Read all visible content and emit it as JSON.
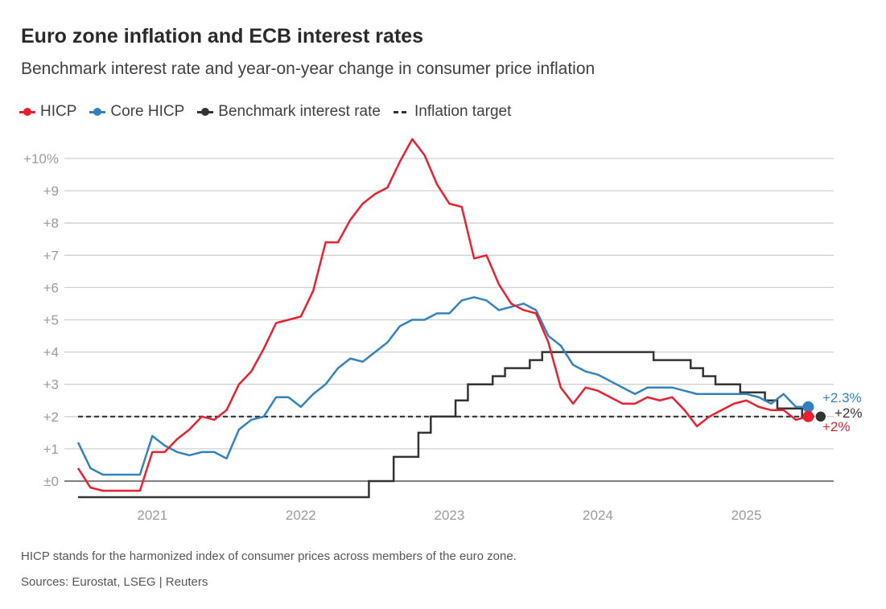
{
  "title": "Euro zone inflation and ECB interest rates",
  "subtitle": "Benchmark interest rate and year-on-year change in consumer price inflation",
  "legend": [
    {
      "label": "HICP",
      "color": "#e8202f"
    },
    {
      "label": "Core HICP",
      "color": "#3182bd"
    },
    {
      "label": "Benchmark interest rate",
      "color": "#333333"
    },
    {
      "label": "Inflation target",
      "color": "#333333"
    }
  ],
  "footnote": "HICP stands for the harmonized index of consumer prices across members of the euro zone.",
  "sources": "Sources: Eurostat, LSEG | Reuters",
  "chart_data": {
    "type": "line",
    "start_month": "2020-07",
    "ylim": [
      -0.5,
      10.6
    ],
    "yticks": [
      0,
      1,
      2,
      3,
      4,
      5,
      6,
      7,
      8,
      9,
      10
    ],
    "ytick_labels": [
      "±0",
      "+1",
      "+2",
      "+3",
      "+4",
      "+5",
      "+6",
      "+7",
      "+8",
      "+9",
      "+10%"
    ],
    "xtick_labels": [
      "2021",
      "2022",
      "2023",
      "2024",
      "2025"
    ],
    "inflation_target": 2,
    "series": [
      {
        "name": "HICP",
        "color": "#e8202f",
        "end_label": "+2%",
        "values": [
          0.4,
          -0.2,
          -0.3,
          -0.3,
          -0.3,
          -0.3,
          0.9,
          0.9,
          1.3,
          1.6,
          2.0,
          1.9,
          2.2,
          3.0,
          3.4,
          4.1,
          4.9,
          5.0,
          5.1,
          5.9,
          7.4,
          7.4,
          8.1,
          8.6,
          8.9,
          9.1,
          9.9,
          10.6,
          10.1,
          9.2,
          8.6,
          8.5,
          6.9,
          7.0,
          6.1,
          5.5,
          5.3,
          5.2,
          4.3,
          2.9,
          2.4,
          2.9,
          2.8,
          2.6,
          2.4,
          2.4,
          2.6,
          2.5,
          2.6,
          2.2,
          1.7,
          2.0,
          2.2,
          2.4,
          2.5,
          2.3,
          2.2,
          2.2,
          1.9,
          2.0
        ]
      },
      {
        "name": "Core HICP",
        "color": "#3182bd",
        "end_label": "+2.3%",
        "values": [
          1.2,
          0.4,
          0.2,
          0.2,
          0.2,
          0.2,
          1.4,
          1.1,
          0.9,
          0.8,
          0.9,
          0.9,
          0.7,
          1.6,
          1.9,
          2.0,
          2.6,
          2.6,
          2.3,
          2.7,
          3.0,
          3.5,
          3.8,
          3.7,
          4.0,
          4.3,
          4.8,
          5.0,
          5.0,
          5.2,
          5.2,
          5.6,
          5.7,
          5.6,
          5.3,
          5.4,
          5.5,
          5.3,
          4.5,
          4.2,
          3.6,
          3.4,
          3.3,
          3.1,
          2.9,
          2.7,
          2.9,
          2.9,
          2.9,
          2.8,
          2.7,
          2.7,
          2.7,
          2.7,
          2.7,
          2.6,
          2.4,
          2.7,
          2.3,
          2.3
        ]
      },
      {
        "name": "Benchmark interest rate",
        "color": "#333333",
        "end_label": "+2%",
        "step": true,
        "values": [
          -0.5,
          -0.5,
          -0.5,
          -0.5,
          -0.5,
          -0.5,
          -0.5,
          -0.5,
          -0.5,
          -0.5,
          -0.5,
          -0.5,
          -0.5,
          -0.5,
          -0.5,
          -0.5,
          -0.5,
          -0.5,
          -0.5,
          -0.5,
          -0.5,
          -0.5,
          -0.5,
          -0.5,
          0,
          0,
          0.75,
          0.75,
          1.5,
          2.0,
          2.0,
          2.5,
          3.0,
          3.0,
          3.25,
          3.5,
          3.5,
          3.75,
          4.0,
          4.0,
          4.0,
          4.0,
          4.0,
          4.0,
          4.0,
          4.0,
          4.0,
          3.75,
          3.75,
          3.75,
          3.5,
          3.25,
          3.0,
          3.0,
          2.75,
          2.75,
          2.5,
          2.25,
          2.25,
          2.0,
          2.0
        ]
      }
    ]
  }
}
